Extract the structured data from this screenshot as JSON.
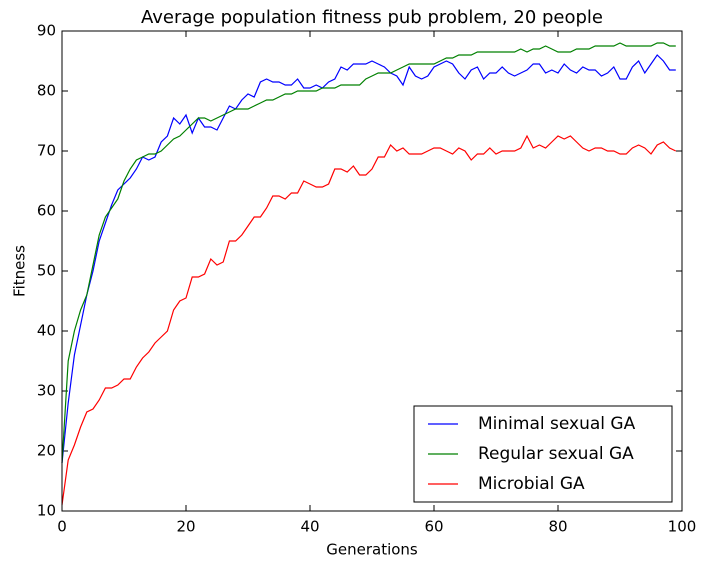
{
  "chart_data": {
    "type": "line",
    "title": "Average population fitness pub problem, 20 people",
    "xlabel": "Generations",
    "ylabel": "Fitness",
    "xlim": [
      0,
      100
    ],
    "ylim": [
      10,
      90
    ],
    "xticks": [
      0,
      20,
      40,
      60,
      80,
      100
    ],
    "yticks": [
      10,
      20,
      30,
      40,
      50,
      60,
      70,
      80,
      90
    ],
    "legend": "lower right",
    "x": [
      0,
      1,
      2,
      3,
      4,
      5,
      6,
      7,
      8,
      9,
      10,
      11,
      12,
      13,
      14,
      15,
      16,
      17,
      18,
      19,
      20,
      21,
      22,
      23,
      24,
      25,
      26,
      27,
      28,
      29,
      30,
      31,
      32,
      33,
      34,
      35,
      36,
      37,
      38,
      39,
      40,
      41,
      42,
      43,
      44,
      45,
      46,
      47,
      48,
      49,
      50,
      51,
      52,
      53,
      54,
      55,
      56,
      57,
      58,
      59,
      60,
      61,
      62,
      63,
      64,
      65,
      66,
      67,
      68,
      69,
      70,
      71,
      72,
      73,
      74,
      75,
      76,
      77,
      78,
      79,
      80,
      81,
      82,
      83,
      84,
      85,
      86,
      87,
      88,
      89,
      90,
      91,
      92,
      93,
      94,
      95,
      96,
      97,
      98,
      99
    ],
    "series": [
      {
        "name": "Minimal sexual GA",
        "color": "#0000ff",
        "values": [
          18,
          28,
          36,
          41,
          46,
          50,
          55,
          58,
          61,
          63.5,
          64.5,
          65.5,
          67,
          69,
          68.5,
          69,
          71.5,
          72.5,
          75.5,
          74.5,
          76,
          73,
          75.5,
          74,
          74,
          73.5,
          75.5,
          77.5,
          77,
          78.5,
          79.5,
          79,
          81.5,
          82,
          81.5,
          81.5,
          81,
          81,
          82,
          80.5,
          80.5,
          81,
          80.5,
          81.5,
          82,
          84,
          83.5,
          84.5,
          84.5,
          84.5,
          85,
          84.5,
          84,
          83,
          82.5,
          81,
          84,
          82.5,
          82,
          82.5,
          84,
          84.5,
          85,
          84.5,
          83,
          82,
          83.5,
          84,
          82,
          83,
          83,
          84,
          83,
          82.5,
          83,
          83.5,
          84.5,
          84.5,
          83,
          83.5,
          83,
          84.5,
          83.5,
          83,
          84,
          83.5,
          83.5,
          82.5,
          83,
          84,
          82,
          82,
          84,
          85,
          83,
          84.5,
          86,
          85,
          83.5,
          83.5
        ]
      },
      {
        "name": "Regular sexual GA",
        "color": "#008000",
        "values": [
          18,
          35,
          40,
          43.5,
          46,
          51,
          56,
          59,
          60.5,
          62,
          65,
          67,
          68.5,
          69,
          69.5,
          69.5,
          70,
          71,
          72,
          72.5,
          73.5,
          74.5,
          75.5,
          75.5,
          75,
          75.5,
          76,
          76.5,
          77,
          77,
          77,
          77.5,
          78,
          78.5,
          78.5,
          79,
          79.5,
          79.5,
          80,
          80,
          80,
          80,
          80.5,
          80.5,
          80.5,
          81,
          81,
          81,
          81,
          82,
          82.5,
          83,
          83,
          83,
          83.5,
          84,
          84.5,
          84.5,
          84.5,
          84.5,
          84.5,
          85,
          85.5,
          85.5,
          86,
          86,
          86,
          86.5,
          86.5,
          86.5,
          86.5,
          86.5,
          86.5,
          86.5,
          87,
          86.5,
          87,
          87,
          87.5,
          87,
          86.5,
          86.5,
          86.5,
          87,
          87,
          87,
          87.5,
          87.5,
          87.5,
          87.5,
          88,
          87.5,
          87.5,
          87.5,
          87.5,
          87.5,
          88,
          88,
          87.5,
          87.5
        ]
      },
      {
        "name": "Microbial GA",
        "color": "#ff0000",
        "values": [
          11,
          18.5,
          21,
          24,
          26.5,
          27,
          28.5,
          30.5,
          30.5,
          31,
          32,
          32,
          34,
          35.5,
          36.5,
          38,
          39,
          40,
          43.5,
          45,
          45.5,
          49,
          49,
          49.5,
          52,
          51,
          51.5,
          55,
          55,
          56,
          57.5,
          59,
          59,
          60.5,
          62.5,
          62.5,
          62,
          63,
          63,
          65,
          64.5,
          64,
          64,
          64.5,
          67,
          67,
          66.5,
          67.5,
          66,
          66,
          67,
          69,
          69,
          71,
          70,
          70.5,
          69.5,
          69.5,
          69.5,
          70,
          70.5,
          70.5,
          70,
          69.5,
          70.5,
          70,
          68.5,
          69.5,
          69.5,
          70.5,
          69.5,
          70,
          70,
          70,
          70.5,
          72.5,
          70.5,
          71,
          70.5,
          71.5,
          72.5,
          72,
          72.5,
          71.5,
          70.5,
          70,
          70.5,
          70.5,
          70,
          70,
          69.5,
          69.5,
          70.5,
          71,
          70.5,
          69.5,
          71,
          71.5,
          70.5,
          70
        ]
      }
    ]
  }
}
